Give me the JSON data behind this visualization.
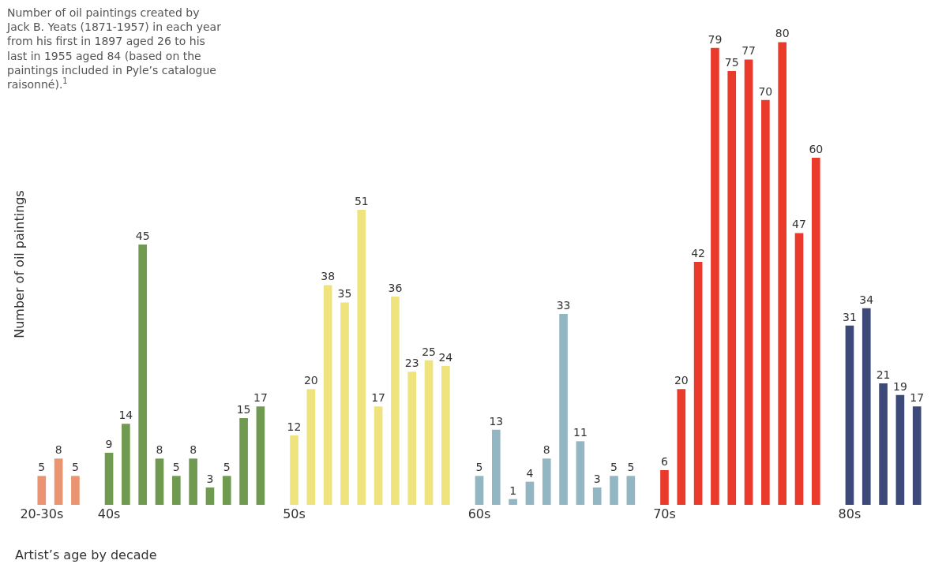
{
  "chart_data": {
    "type": "bar",
    "title": "Number of oil paintings created by\nJack B. Yeats (1871-1957) in each year\nfrom his first in 1897 aged 26 to his\nlast in 1955 aged 84 (based on the\npaintings included in Pyle’s catalogue\nraisonné).$^{1}$",
    "xlabel": "Artist’s age by decade",
    "ylabel": "Number of oil paintings",
    "categories": [
      "20-30s",
      null,
      null,
      null,
      "40s",
      null,
      null,
      null,
      null,
      null,
      null,
      null,
      null,
      null,
      null,
      "50s",
      null,
      null,
      null,
      null,
      null,
      null,
      null,
      null,
      null,
      null,
      "60s",
      null,
      null,
      null,
      null,
      null,
      null,
      null,
      null,
      null,
      null,
      "70s",
      null,
      null,
      null,
      null,
      null,
      null,
      null,
      null,
      null,
      null,
      "80s",
      null,
      null,
      null,
      null
    ],
    "values": [
      5,
      8,
      5,
      null,
      9,
      14,
      45,
      8,
      5,
      8,
      3,
      5,
      15,
      17,
      null,
      12,
      20,
      38,
      35,
      51,
      17,
      36,
      23,
      25,
      24,
      null,
      5,
      13,
      1,
      4,
      8,
      33,
      11,
      3,
      5,
      5,
      null,
      6,
      20,
      42,
      79,
      75,
      77,
      70,
      80,
      47,
      60,
      null,
      31,
      34,
      21,
      19,
      17
    ],
    "colors": [
      "#eb9472",
      "#eb9472",
      "#eb9472",
      null,
      "#6f9a50",
      "#6f9a50",
      "#6f9a50",
      "#6f9a50",
      "#6f9a50",
      "#6f9a50",
      "#6f9a50",
      "#6f9a50",
      "#6f9a50",
      "#6f9a50",
      null,
      "#eee37c",
      "#eee37c",
      "#eee37c",
      "#eee37c",
      "#eee37c",
      "#eee37c",
      "#eee37c",
      "#eee37c",
      "#eee37c",
      "#eee37c",
      null,
      "#93b7c2",
      "#93b7c2",
      "#93b7c2",
      "#93b7c2",
      "#93b7c2",
      "#93b7c2",
      "#93b7c2",
      "#93b7c2",
      "#93b7c2",
      "#93b7c2",
      null,
      "#ea3a2c",
      "#ea3a2c",
      "#ea3a2c",
      "#ea3a2c",
      "#ea3a2c",
      "#ea3a2c",
      "#ea3a2c",
      "#ea3a2c",
      "#ea3a2c",
      "#ea3a2c",
      null,
      "#3d4a79",
      "#3d4a79",
      "#3d4a79",
      "#3d4a79",
      "#3d4a79"
    ],
    "data_labels": true,
    "legend": false
  }
}
